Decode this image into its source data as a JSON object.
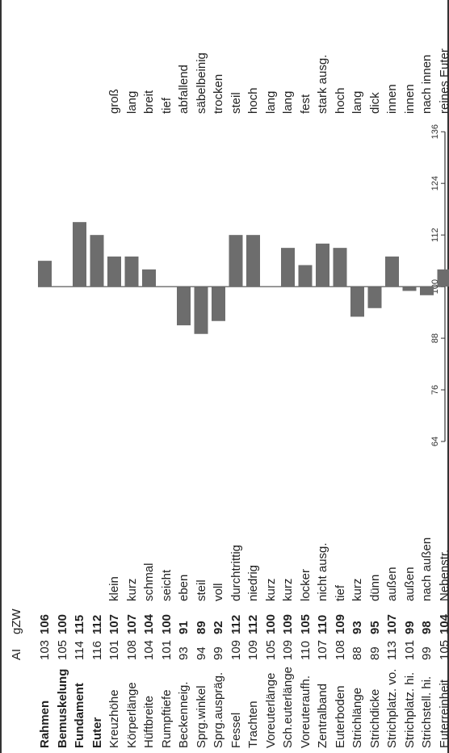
{
  "header": {
    "col_ai": "AI",
    "col_gzw": "gZW"
  },
  "chart_data": {
    "type": "bar",
    "baseline": 100,
    "ylim": [
      64,
      136
    ],
    "yticks": [
      64,
      76,
      88,
      100,
      112,
      124,
      136
    ],
    "traits": [
      {
        "name": "Rahmen",
        "bold": true,
        "ai": "103",
        "gzw": "106",
        "value": 106,
        "low": "",
        "high": ""
      },
      {
        "name": "Bemuskelung",
        "bold": true,
        "ai": "105",
        "gzw": "100",
        "value": 100,
        "low": "",
        "high": ""
      },
      {
        "name": "Fundament",
        "bold": true,
        "ai": "114",
        "gzw": "115",
        "value": 115,
        "low": "",
        "high": ""
      },
      {
        "name": "Euter",
        "bold": true,
        "ai": "116",
        "gzw": "112",
        "value": 112,
        "low": "",
        "high": ""
      },
      {
        "name": "Kreuzhöhe",
        "bold": false,
        "ai": "101",
        "gzw": "107",
        "value": 107,
        "low": "klein",
        "high": "groß"
      },
      {
        "name": "Körperlänge",
        "bold": false,
        "ai": "108",
        "gzw": "107",
        "value": 107,
        "low": "kurz",
        "high": "lang"
      },
      {
        "name": "Hüftbreite",
        "bold": false,
        "ai": "104",
        "gzw": "104",
        "value": 104,
        "low": "schmal",
        "high": "breit"
      },
      {
        "name": "Rumpftiefe",
        "bold": false,
        "ai": "101",
        "gzw": "100",
        "value": 100,
        "low": "seicht",
        "high": "tief"
      },
      {
        "name": "Beckenneig.",
        "bold": false,
        "ai": "93",
        "gzw": "91",
        "value": 91,
        "low": "eben",
        "high": "abfallend"
      },
      {
        "name": "Sprg.winkel",
        "bold": false,
        "ai": "94",
        "gzw": "89",
        "value": 89,
        "low": "steil",
        "high": "säbelbeinig"
      },
      {
        "name": "Sprg.auspräg.",
        "bold": false,
        "ai": "99",
        "gzw": "92",
        "value": 92,
        "low": "voll",
        "high": "trocken"
      },
      {
        "name": "Fessel",
        "bold": false,
        "ai": "109",
        "gzw": "112",
        "value": 112,
        "low": "durchtrittig",
        "high": "steil"
      },
      {
        "name": "Trachten",
        "bold": false,
        "ai": "109",
        "gzw": "112",
        "value": 112,
        "low": "niedrig",
        "high": "hoch"
      },
      {
        "name": "Voreuterlänge",
        "bold": false,
        "ai": "105",
        "gzw": "100",
        "value": 100,
        "low": "kurz",
        "high": "lang"
      },
      {
        "name": "Sch.euterlänge",
        "bold": false,
        "ai": "109",
        "gzw": "109",
        "value": 109,
        "low": "kurz",
        "high": "lang"
      },
      {
        "name": "Voreuteraufh.",
        "bold": false,
        "ai": "110",
        "gzw": "105",
        "value": 105,
        "low": "locker",
        "high": "fest"
      },
      {
        "name": "Zentralband",
        "bold": false,
        "ai": "107",
        "gzw": "110",
        "value": 110,
        "low": "nicht ausg.",
        "high": "stark ausg."
      },
      {
        "name": "Euterboden",
        "bold": false,
        "ai": "108",
        "gzw": "109",
        "value": 109,
        "low": "tief",
        "high": "hoch"
      },
      {
        "name": "Strichlänge",
        "bold": false,
        "ai": "88",
        "gzw": "93",
        "value": 93,
        "low": "kurz",
        "high": "lang"
      },
      {
        "name": "Strichdicke",
        "bold": false,
        "ai": "89",
        "gzw": "95",
        "value": 95,
        "low": "dünn",
        "high": "dick"
      },
      {
        "name": "Strichplatz. vo.",
        "bold": false,
        "ai": "113",
        "gzw": "107",
        "value": 107,
        "low": "außen",
        "high": "innen"
      },
      {
        "name": "Strichplatz. hi.",
        "bold": false,
        "ai": "101",
        "gzw": "99",
        "value": 99,
        "low": "außen",
        "high": "innen"
      },
      {
        "name": "Strichstell. hi.",
        "bold": false,
        "ai": "99",
        "gzw": "98",
        "value": 98,
        "low": "nach außen",
        "high": "nach innen"
      },
      {
        "name": "Euterreinheit",
        "bold": false,
        "ai": "105",
        "gzw": "104",
        "value": 104,
        "low": "Nebenstr.",
        "high": "reines Euter"
      }
    ]
  }
}
